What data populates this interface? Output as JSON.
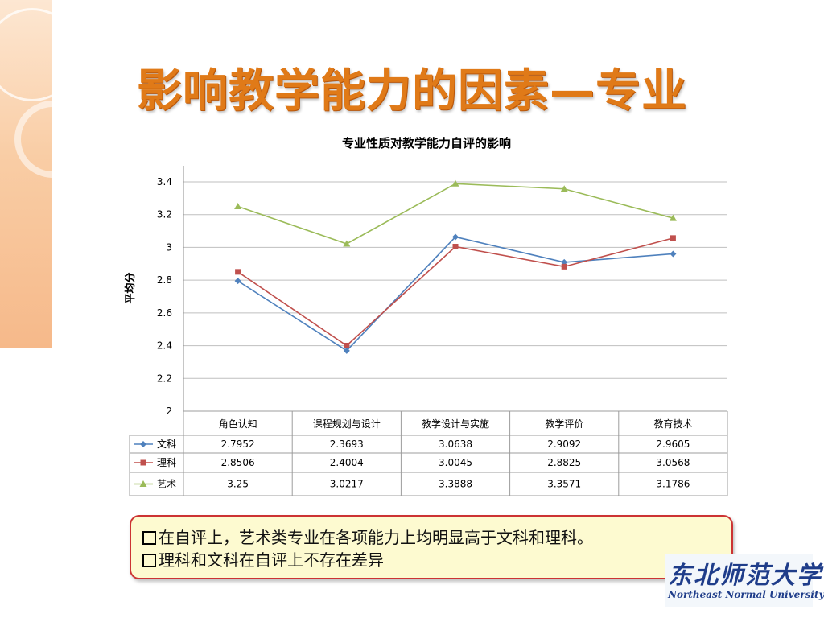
{
  "slide": {
    "title": "影响教学能力的因素—专业"
  },
  "chart_data": {
    "type": "line",
    "title": "专业性质对教学能力自评的影响",
    "ylabel": "平均分",
    "xlabel": "",
    "ylim": [
      2,
      3.4
    ],
    "yticks": [
      "2",
      "2.2",
      "2.4",
      "2.6",
      "2.8",
      "3",
      "3.2",
      "3.4"
    ],
    "categories": [
      "角色认知",
      "课程规划与设计",
      "教学设计与实施",
      "教学评价",
      "教育技术"
    ],
    "series": [
      {
        "name": "文科",
        "values": [
          2.7952,
          2.3693,
          3.0638,
          2.9092,
          2.9605
        ],
        "color": "#4f81bd",
        "marker": "diamond"
      },
      {
        "name": "理科",
        "values": [
          2.8506,
          2.4004,
          3.0045,
          2.8825,
          3.0568
        ],
        "color": "#c0504d",
        "marker": "square"
      },
      {
        "name": "艺术",
        "values": [
          3.25,
          3.0217,
          3.3888,
          3.3571,
          3.1786
        ],
        "color": "#9bbb59",
        "marker": "triangle"
      }
    ],
    "table_values": [
      [
        "2.7952",
        "2.3693",
        "3.0638",
        "2.9092",
        "2.9605"
      ],
      [
        "2.8506",
        "2.4004",
        "3.0045",
        "2.8825",
        "3.0568"
      ],
      [
        "3.25",
        "3.0217",
        "3.3888",
        "3.3571",
        "3.1786"
      ]
    ],
    "grid": true,
    "legend": "data-table"
  },
  "notes": {
    "line1": "在自评上，艺术类专业在各项能力上均明显高于文科和理科。",
    "line2": "理科和文科在自评上不存在差异"
  },
  "logo": {
    "cn": "东北师范大学",
    "en": "Northeast Normal University"
  }
}
